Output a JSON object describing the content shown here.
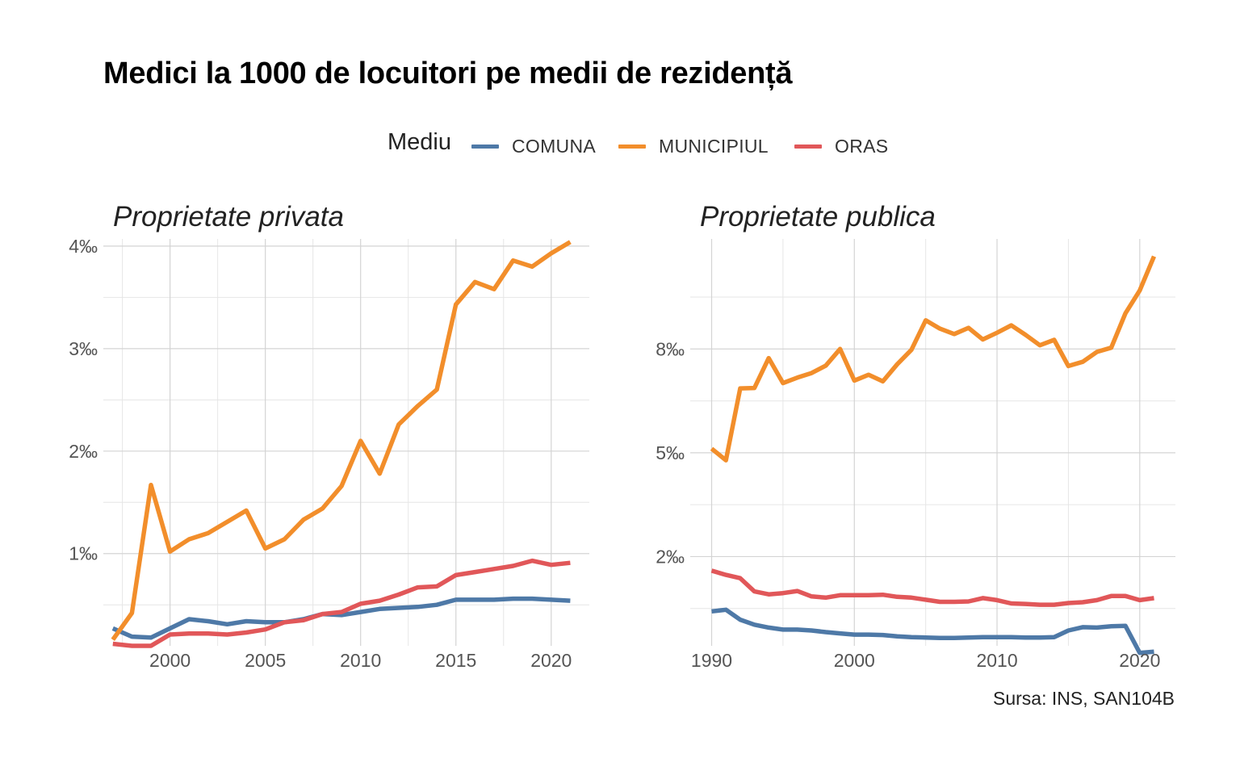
{
  "title": "Medici la 1000 de locuitori pe medii de rezidență",
  "legend": {
    "title": "Mediu",
    "items": [
      {
        "label": "COMUNA",
        "color": "#4e79a7"
      },
      {
        "label": "MUNICIPIUL",
        "color": "#f28e2b"
      },
      {
        "label": "ORAS",
        "color": "#e15759"
      }
    ]
  },
  "caption": "Sursa: INS, SAN104B",
  "chart_data": [
    {
      "type": "line",
      "title": "Proprietate privata",
      "xlim": [
        1996.5,
        2022
      ],
      "ylim": [
        0.1,
        4.07
      ],
      "xticks": [
        {
          "value": 2000,
          "label": "2000"
        },
        {
          "value": 2005,
          "label": "2005"
        },
        {
          "value": 2010,
          "label": "2010"
        },
        {
          "value": 2015,
          "label": "2015"
        },
        {
          "value": 2020,
          "label": "2020"
        }
      ],
      "xminor": [
        1997.5,
        2002.5,
        2007.5,
        2012.5,
        2017.5
      ],
      "yticks": [
        {
          "value": 1,
          "label": "1‰"
        },
        {
          "value": 2,
          "label": "2‰"
        },
        {
          "value": 3,
          "label": "3‰"
        },
        {
          "value": 4,
          "label": "4‰"
        }
      ],
      "yminor": [
        0.5,
        1.5,
        2.5,
        3.5
      ],
      "x": [
        1997,
        1998,
        1999,
        2000,
        2001,
        2002,
        2003,
        2004,
        2005,
        2006,
        2007,
        2008,
        2009,
        2010,
        2011,
        2012,
        2013,
        2014,
        2015,
        2016,
        2017,
        2018,
        2019,
        2020,
        2021
      ],
      "series": [
        {
          "name": "COMUNA",
          "values": [
            0.27,
            0.19,
            0.18,
            0.27,
            0.36,
            0.34,
            0.31,
            0.34,
            0.33,
            0.33,
            0.36,
            0.41,
            0.4,
            0.43,
            0.46,
            0.47,
            0.48,
            0.5,
            0.55,
            0.55,
            0.55,
            0.56,
            0.56,
            0.55,
            0.54
          ]
        },
        {
          "name": "MUNICIPIUL",
          "values": [
            0.16,
            0.42,
            1.67,
            1.02,
            1.14,
            1.2,
            1.31,
            1.42,
            1.05,
            1.14,
            1.33,
            1.44,
            1.66,
            2.1,
            1.78,
            2.26,
            2.44,
            2.6,
            3.43,
            3.65,
            3.58,
            3.86,
            3.8,
            3.93,
            4.04
          ]
        },
        {
          "name": "ORAS",
          "values": [
            0.12,
            0.1,
            0.1,
            0.21,
            0.22,
            0.22,
            0.21,
            0.23,
            0.26,
            0.33,
            0.35,
            0.41,
            0.43,
            0.51,
            0.54,
            0.6,
            0.67,
            0.68,
            0.79,
            0.82,
            0.85,
            0.88,
            0.93,
            0.89,
            0.91
          ]
        }
      ]
    },
    {
      "type": "line",
      "title": "Proprietate publica",
      "xlim": [
        1988.5,
        2022.5
      ],
      "ylim": [
        0.35,
        10.15
      ],
      "xticks": [
        {
          "value": 1990,
          "label": "1990"
        },
        {
          "value": 2000,
          "label": "2000"
        },
        {
          "value": 2010,
          "label": "2010"
        },
        {
          "value": 2020,
          "label": "2020"
        }
      ],
      "xminor": [
        1995,
        2005,
        2015
      ],
      "yticks": [
        {
          "value": 2.5,
          "label": "2‰"
        },
        {
          "value": 5,
          "label": "5‰"
        },
        {
          "value": 7.5,
          "label": "8‰"
        }
      ],
      "yminor": [
        1.25,
        3.75,
        6.25,
        8.75
      ],
      "x": [
        1990,
        1991,
        1992,
        1993,
        1994,
        1995,
        1996,
        1997,
        1998,
        1999,
        2000,
        2001,
        2002,
        2003,
        2004,
        2005,
        2006,
        2007,
        2008,
        2009,
        2010,
        2011,
        2012,
        2013,
        2014,
        2015,
        2016,
        2017,
        2018,
        2019,
        2020,
        2021
      ],
      "series": [
        {
          "name": "COMUNA",
          "values": [
            1.18,
            1.22,
            0.98,
            0.86,
            0.79,
            0.74,
            0.74,
            0.72,
            0.68,
            0.65,
            0.62,
            0.62,
            0.61,
            0.58,
            0.56,
            0.55,
            0.54,
            0.54,
            0.55,
            0.56,
            0.56,
            0.56,
            0.55,
            0.55,
            0.56,
            0.72,
            0.8,
            0.79,
            0.82,
            0.83,
            0.18,
            0.21
          ]
        },
        {
          "name": "MUNICIPIUL",
          "values": [
            5.1,
            4.82,
            6.55,
            6.56,
            7.28,
            6.68,
            6.81,
            6.92,
            7.1,
            7.5,
            6.74,
            6.88,
            6.72,
            7.13,
            7.48,
            8.19,
            7.99,
            7.86,
            8.01,
            7.73,
            7.89,
            8.07,
            7.84,
            7.59,
            7.72,
            7.09,
            7.19,
            7.43,
            7.53,
            8.36,
            8.91,
            9.73
          ]
        },
        {
          "name": "ORAS",
          "values": [
            2.16,
            2.06,
            1.98,
            1.66,
            1.59,
            1.62,
            1.67,
            1.54,
            1.51,
            1.57,
            1.57,
            1.57,
            1.58,
            1.53,
            1.51,
            1.46,
            1.41,
            1.41,
            1.42,
            1.5,
            1.45,
            1.37,
            1.36,
            1.34,
            1.34,
            1.38,
            1.4,
            1.45,
            1.55,
            1.55,
            1.45,
            1.5
          ]
        }
      ]
    }
  ]
}
